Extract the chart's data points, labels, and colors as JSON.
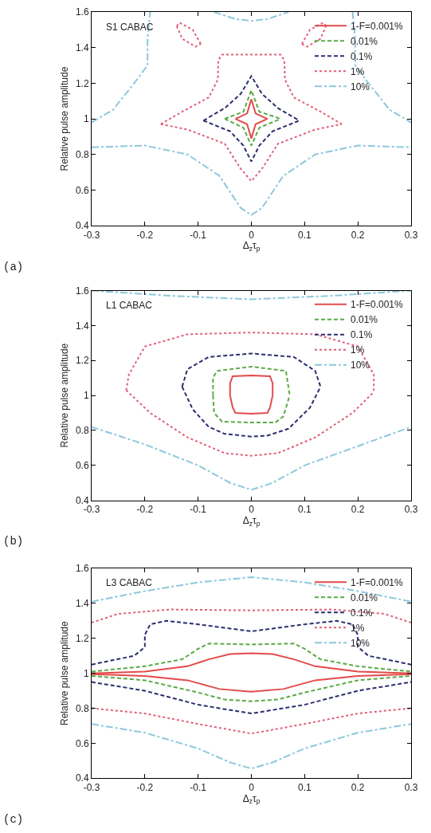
{
  "chart_data": [
    {
      "type": "line",
      "annotations": [
        "S1 CABAC",
        "(a)"
      ],
      "xlabel": "Δ$_{z}$τ$_{p}$",
      "ylabel": "Relative pulse amplitude",
      "xlim": [
        -0.3,
        0.3
      ],
      "xticks": [
        -0.3,
        -0.2,
        -0.1,
        0,
        0.1,
        0.2,
        0.3
      ],
      "ylim": [
        0.4,
        1.6
      ],
      "yticks": [
        0.4,
        0.6,
        0.8,
        1,
        1.2,
        1.4,
        1.6
      ],
      "legend": "top right",
      "series": [
        {
          "name": "1-F=0.001%",
          "color": "#e34a4a",
          "line_style": "solid",
          "x": [
            -0.03,
            -0.008,
            0,
            0.008,
            0.03,
            null,
            -0.03,
            -0.008,
            0,
            0.008,
            0.03
          ],
          "values": [
            1.0,
            1.03,
            1.11,
            1.03,
            1.0,
            null,
            1.0,
            0.97,
            0.89,
            0.97,
            1.0
          ]
        },
        {
          "name": "0.01%",
          "color": "#5aaa46",
          "line_style": "dashed",
          "x": [
            -0.05,
            -0.015,
            0,
            0.015,
            0.055,
            null,
            -0.05,
            -0.015,
            0,
            0.015,
            0.055
          ],
          "values": [
            1.0,
            1.04,
            1.16,
            1.04,
            1.0,
            null,
            1.0,
            0.95,
            0.85,
            0.95,
            1.0
          ]
        },
        {
          "name": "0.1%",
          "color": "#2b2f6e",
          "line_style": "dashed",
          "x": [
            -0.09,
            -0.05,
            -0.02,
            0,
            0.02,
            0.05,
            0.09,
            null,
            -0.09,
            -0.04,
            -0.015,
            0,
            0.015,
            0.04,
            0.09
          ],
          "values": [
            0.99,
            1.06,
            1.14,
            1.24,
            1.14,
            1.06,
            0.99,
            null,
            0.99,
            0.93,
            0.85,
            0.76,
            0.85,
            0.93,
            0.99
          ]
        },
        {
          "name": "1%",
          "color": "#e0607a",
          "line_style": "dotted",
          "x": [
            -0.17,
            -0.13,
            -0.08,
            -0.063,
            -0.062,
            -0.055,
            0,
            0.055,
            0.062,
            0.063,
            0.08,
            0.13,
            0.17,
            null,
            -0.17,
            -0.12,
            -0.05,
            -0.02,
            0,
            0.02,
            0.05,
            0.12,
            0.17,
            null,
            -0.14,
            -0.135,
            -0.11,
            -0.095,
            null,
            -0.14,
            -0.13,
            -0.105,
            -0.095,
            null,
            0.095,
            0.11,
            0.135,
            0.14,
            null,
            0.095,
            0.105,
            0.13,
            0.14
          ],
          "values": [
            0.97,
            1.04,
            1.12,
            1.22,
            1.33,
            1.36,
            1.36,
            1.36,
            1.33,
            1.22,
            1.12,
            1.04,
            0.97,
            null,
            0.97,
            0.94,
            0.86,
            0.72,
            0.65,
            0.72,
            0.86,
            0.94,
            0.97,
            null,
            1.52,
            1.54,
            1.5,
            1.42,
            null,
            1.52,
            1.45,
            1.405,
            1.42,
            null,
            1.42,
            1.5,
            1.54,
            1.52,
            null,
            1.42,
            1.405,
            1.45,
            1.52
          ]
        },
        {
          "name": "10%",
          "color": "#8ec8dc",
          "line_style": "dashdot",
          "x": [
            -0.3,
            -0.26,
            -0.22,
            -0.195,
            -0.195,
            -0.19,
            null,
            0.19,
            0.195,
            0.195,
            0.22,
            0.26,
            0.3,
            null,
            -0.07,
            -0.03,
            0,
            0.03,
            0.07,
            null,
            -0.3,
            -0.2,
            -0.12,
            -0.06,
            -0.02,
            0,
            0.02,
            0.06,
            0.12,
            0.2,
            0.3
          ],
          "values": [
            0.98,
            1.05,
            1.2,
            1.3,
            1.45,
            1.6,
            null,
            1.6,
            1.45,
            1.3,
            1.2,
            1.05,
            0.98,
            null,
            1.6,
            1.56,
            1.55,
            1.56,
            1.6,
            null,
            0.84,
            0.85,
            0.8,
            0.68,
            0.5,
            0.46,
            0.5,
            0.68,
            0.8,
            0.85,
            0.84
          ]
        }
      ]
    },
    {
      "type": "line",
      "annotations": [
        "L1 CABAC",
        "(b)"
      ],
      "xlabel": "Δ$_{z}$τ$_{p}$",
      "ylabel": "Relative pulse amplitude",
      "xlim": [
        -0.3,
        0.3
      ],
      "xticks": [
        -0.3,
        -0.2,
        -0.1,
        0,
        0.1,
        0.2,
        0.3
      ],
      "ylim": [
        0.4,
        1.6
      ],
      "yticks": [
        0.4,
        0.6,
        0.8,
        1,
        1.2,
        1.4,
        1.6
      ],
      "legend": "top right",
      "series": [
        {
          "name": "1-F=0.001%",
          "color": "#e34a4a",
          "line_style": "solid",
          "x": [
            -0.04,
            -0.04,
            -0.035,
            0,
            0.035,
            0.04,
            0.04,
            null,
            -0.04,
            -0.035,
            -0.03,
            0,
            0.03,
            0.035,
            0.04
          ],
          "values": [
            1.0,
            1.07,
            1.11,
            1.115,
            1.11,
            1.07,
            1.0,
            null,
            1.0,
            0.93,
            0.9,
            0.895,
            0.9,
            0.93,
            1.0
          ]
        },
        {
          "name": "0.01%",
          "color": "#5aaa46",
          "line_style": "dashed",
          "x": [
            -0.072,
            -0.072,
            -0.065,
            0,
            0.065,
            0.072,
            null,
            -0.072,
            -0.07,
            -0.055,
            0,
            0.045,
            0.06,
            0.072
          ],
          "values": [
            1.0,
            1.1,
            1.14,
            1.165,
            1.14,
            1.0,
            null,
            1.0,
            0.9,
            0.85,
            0.845,
            0.845,
            0.88,
            1.0
          ]
        },
        {
          "name": "0.1%",
          "color": "#2b2f6e",
          "line_style": "dashed",
          "x": [
            -0.13,
            -0.12,
            -0.08,
            0,
            0.08,
            0.12,
            0.13,
            null,
            -0.13,
            -0.11,
            -0.08,
            -0.05,
            0,
            0.03,
            0.07,
            0.11,
            0.13
          ],
          "values": [
            1.05,
            1.15,
            1.22,
            1.24,
            1.22,
            1.14,
            1.05,
            null,
            1.05,
            0.92,
            0.82,
            0.78,
            0.765,
            0.77,
            0.81,
            0.93,
            1.05
          ]
        },
        {
          "name": "1%",
          "color": "#e0607a",
          "line_style": "dotted",
          "x": [
            -0.235,
            -0.23,
            -0.2,
            -0.12,
            0,
            0.12,
            0.2,
            0.23,
            0.23,
            null,
            -0.235,
            -0.19,
            -0.12,
            -0.05,
            0,
            0.05,
            0.12,
            0.19,
            0.23
          ],
          "values": [
            1.03,
            1.12,
            1.28,
            1.35,
            1.36,
            1.35,
            1.28,
            1.12,
            1.02,
            null,
            1.03,
            0.9,
            0.76,
            0.67,
            0.655,
            0.67,
            0.76,
            0.9,
            1.02
          ]
        },
        {
          "name": "10%",
          "color": "#8ec8dc",
          "line_style": "dashdot",
          "x": [
            -0.3,
            -0.15,
            0,
            0.15,
            0.3,
            null,
            -0.3,
            -0.2,
            -0.1,
            -0.04,
            0,
            0.04,
            0.1,
            0.2,
            0.3
          ],
          "values": [
            1.6,
            1.57,
            1.55,
            1.57,
            1.6,
            null,
            0.82,
            0.72,
            0.6,
            0.5,
            0.46,
            0.5,
            0.6,
            0.71,
            0.82
          ]
        }
      ]
    },
    {
      "type": "line",
      "annotations": [
        "L3 CABAC",
        "(c)"
      ],
      "xlabel": "Δ$_{z}$τ$_{p}$",
      "ylabel": "Relative pulse amplitude",
      "xlim": [
        -0.3,
        0.3
      ],
      "xticks": [
        -0.3,
        -0.2,
        -0.1,
        0,
        0.1,
        0.2,
        0.3
      ],
      "ylim": [
        0.4,
        1.6
      ],
      "yticks": [
        0.4,
        0.6,
        0.8,
        1,
        1.2,
        1.4,
        1.6
      ],
      "legend": "top right",
      "series": [
        {
          "name": "1-F=0.001%",
          "color": "#e34a4a",
          "line_style": "solid",
          "x": [
            -0.3,
            -0.2,
            -0.12,
            -0.08,
            -0.04,
            0,
            0.04,
            0.08,
            0.12,
            0.2,
            0.3,
            null,
            -0.3,
            -0.2,
            -0.12,
            -0.06,
            0,
            0.06,
            0.12,
            0.2,
            0.3
          ],
          "values": [
            1.0,
            1.01,
            1.04,
            1.08,
            1.11,
            1.115,
            1.11,
            1.08,
            1.04,
            1.01,
            1.0,
            null,
            0.995,
            0.985,
            0.96,
            0.91,
            0.895,
            0.91,
            0.96,
            0.985,
            0.995
          ]
        },
        {
          "name": "0.01%",
          "color": "#5aaa46",
          "line_style": "dashed",
          "x": [
            -0.3,
            -0.2,
            -0.13,
            -0.1,
            -0.08,
            0,
            0.08,
            0.1,
            0.13,
            0.2,
            0.3,
            null,
            -0.3,
            -0.2,
            -0.1,
            -0.05,
            0,
            0.05,
            0.1,
            0.2,
            0.3
          ],
          "values": [
            1.01,
            1.04,
            1.08,
            1.14,
            1.17,
            1.165,
            1.17,
            1.14,
            1.08,
            1.04,
            1.01,
            null,
            0.985,
            0.96,
            0.89,
            0.85,
            0.84,
            0.85,
            0.89,
            0.96,
            0.985
          ]
        },
        {
          "name": "0.1%",
          "color": "#2b2f6e",
          "line_style": "dashed",
          "x": [
            -0.3,
            -0.22,
            -0.2,
            -0.2,
            -0.19,
            -0.16,
            -0.1,
            0,
            0.1,
            0.16,
            0.19,
            0.2,
            0.2,
            0.22,
            0.3,
            null,
            -0.3,
            -0.2,
            -0.1,
            0,
            0.1,
            0.2,
            0.3
          ],
          "values": [
            1.05,
            1.1,
            1.15,
            1.22,
            1.28,
            1.3,
            1.28,
            1.24,
            1.28,
            1.3,
            1.28,
            1.22,
            1.15,
            1.1,
            1.05,
            null,
            0.95,
            0.9,
            0.82,
            0.77,
            0.82,
            0.9,
            0.95
          ]
        },
        {
          "name": "1%",
          "color": "#e0607a",
          "line_style": "dotted",
          "x": [
            -0.3,
            -0.25,
            -0.15,
            0,
            0.15,
            0.25,
            0.3,
            null,
            -0.3,
            -0.2,
            -0.1,
            0,
            0.1,
            0.2,
            0.3
          ],
          "values": [
            1.29,
            1.34,
            1.365,
            1.36,
            1.365,
            1.34,
            1.29,
            null,
            0.8,
            0.77,
            0.71,
            0.655,
            0.71,
            0.77,
            0.8
          ]
        },
        {
          "name": "10%",
          "color": "#8ec8dc",
          "line_style": "dashdot",
          "x": [
            -0.3,
            -0.2,
            -0.1,
            0,
            0.1,
            0.2,
            0.3,
            null,
            -0.3,
            -0.2,
            -0.1,
            -0.04,
            0,
            0.04,
            0.1,
            0.2,
            0.3
          ],
          "values": [
            1.41,
            1.47,
            1.52,
            1.55,
            1.52,
            1.47,
            1.41,
            null,
            0.71,
            0.66,
            0.57,
            0.49,
            0.455,
            0.49,
            0.57,
            0.66,
            0.71
          ]
        }
      ]
    }
  ]
}
